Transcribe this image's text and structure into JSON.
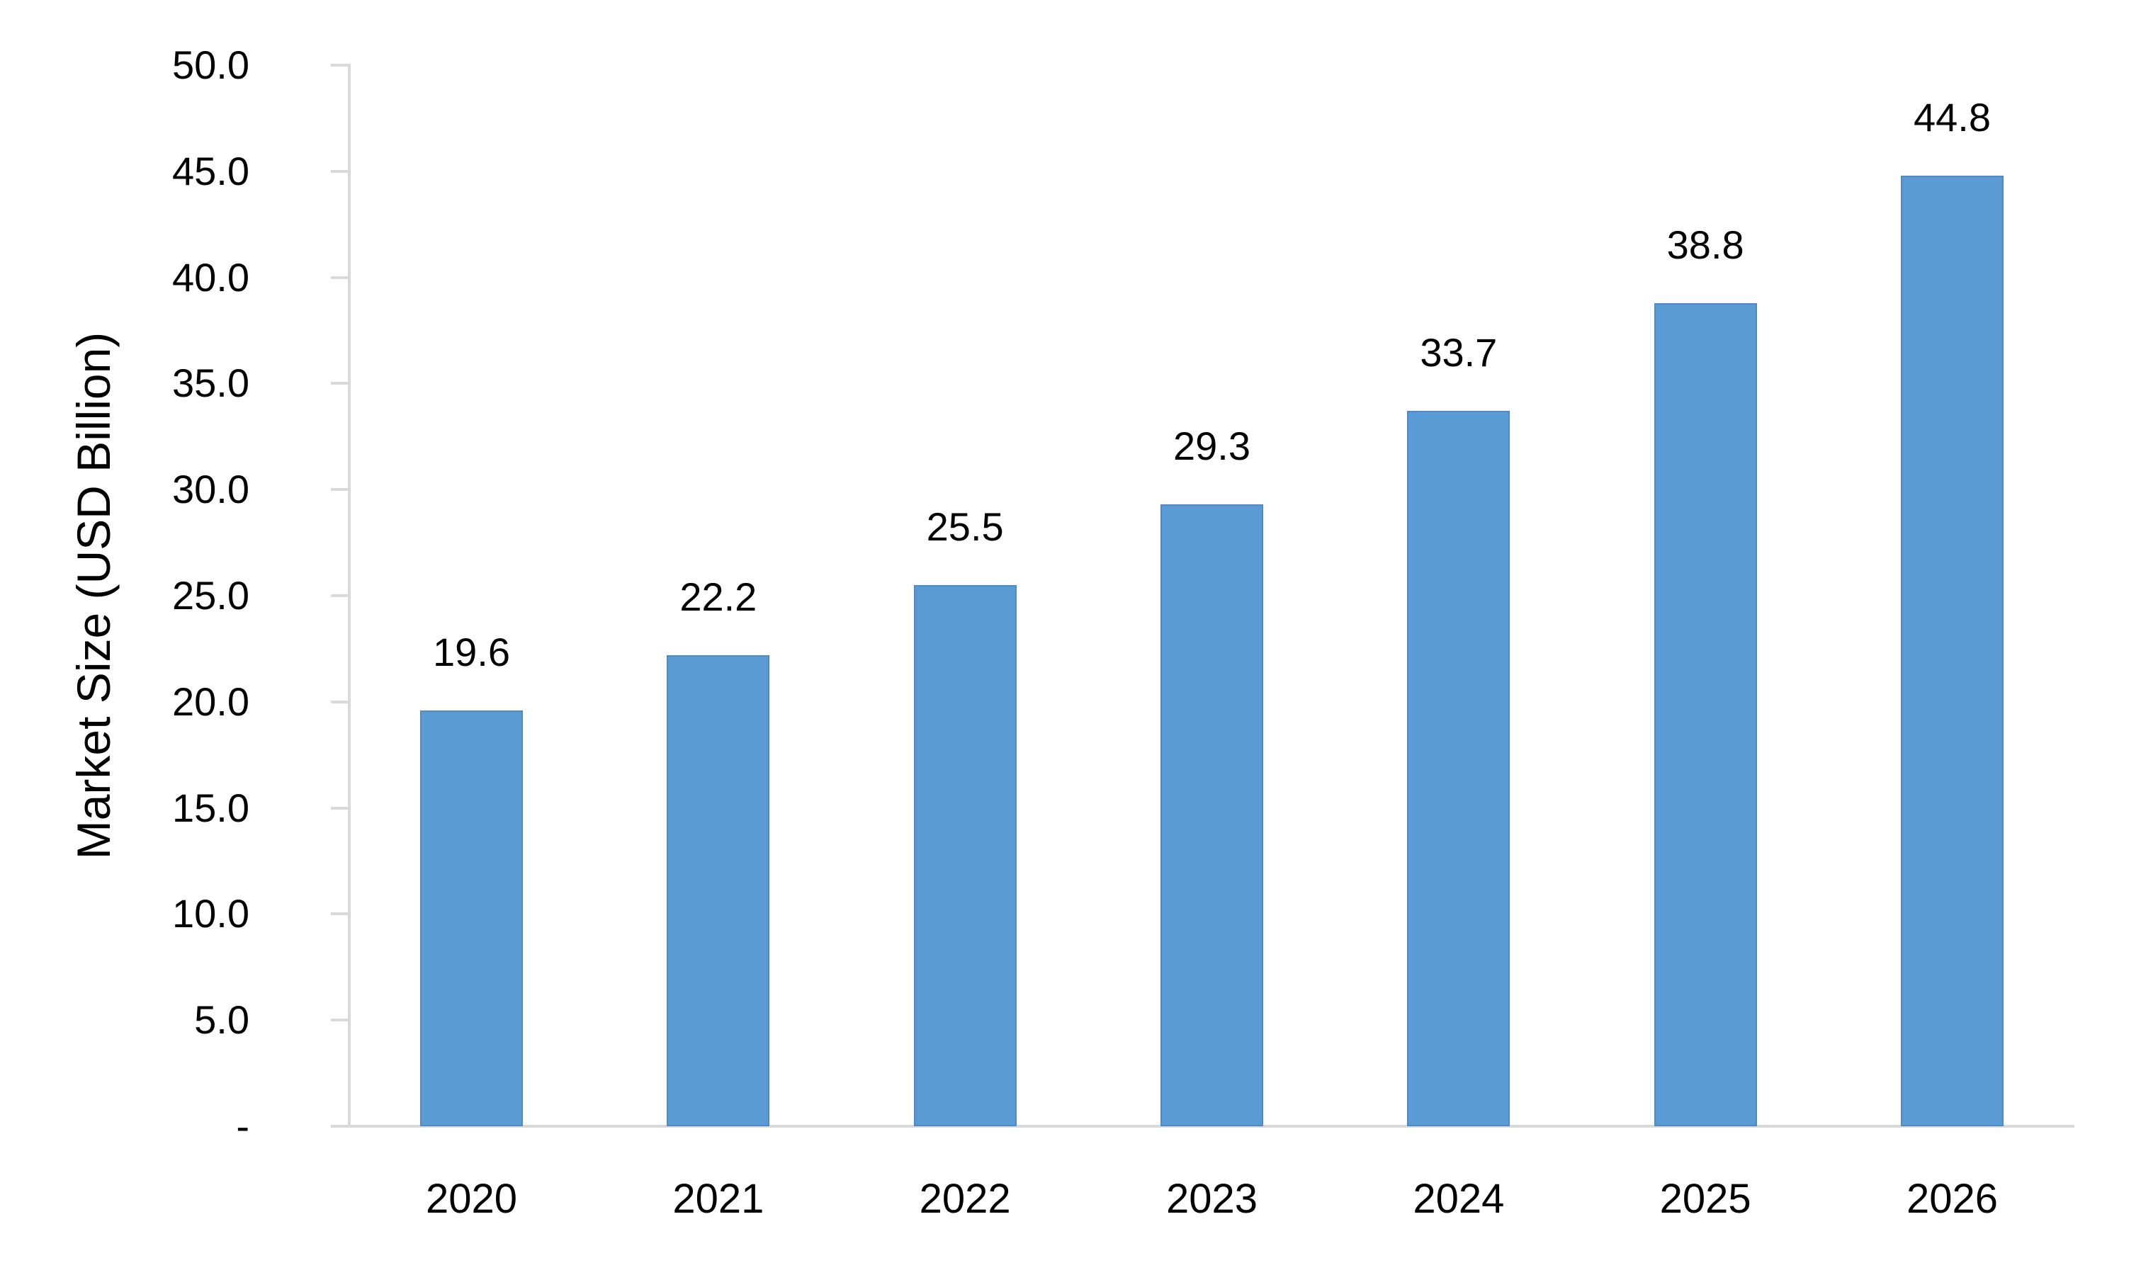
{
  "chart_data": {
    "type": "bar",
    "title": "",
    "categories": [
      "2020",
      "2021",
      "2022",
      "2023",
      "2024",
      "2025",
      "2026"
    ],
    "values": [
      19.6,
      22.2,
      25.5,
      29.3,
      33.7,
      38.8,
      44.8
    ],
    "data_labels": [
      "19.6",
      "22.2",
      "25.5",
      "29.3",
      "33.7",
      "38.8",
      "44.8"
    ],
    "series_name": "Market Size",
    "xlabel": "",
    "ylabel": "Market Size (USD Billion)",
    "ylim": [
      0,
      50
    ],
    "ytick_interval": 5,
    "ytick_labels": [
      "-",
      "5.0",
      "10.0",
      "15.0",
      "20.0",
      "25.0",
      "30.0",
      "35.0",
      "40.0",
      "45.0",
      "50.0"
    ],
    "grid": false,
    "legend": "none",
    "bar_color": "#5B9BD5",
    "bar_border_color": "#4E8AC8",
    "axis_color": "#D9D9D9",
    "text_color": "#000000",
    "background_color": "#FFFFFF"
  }
}
